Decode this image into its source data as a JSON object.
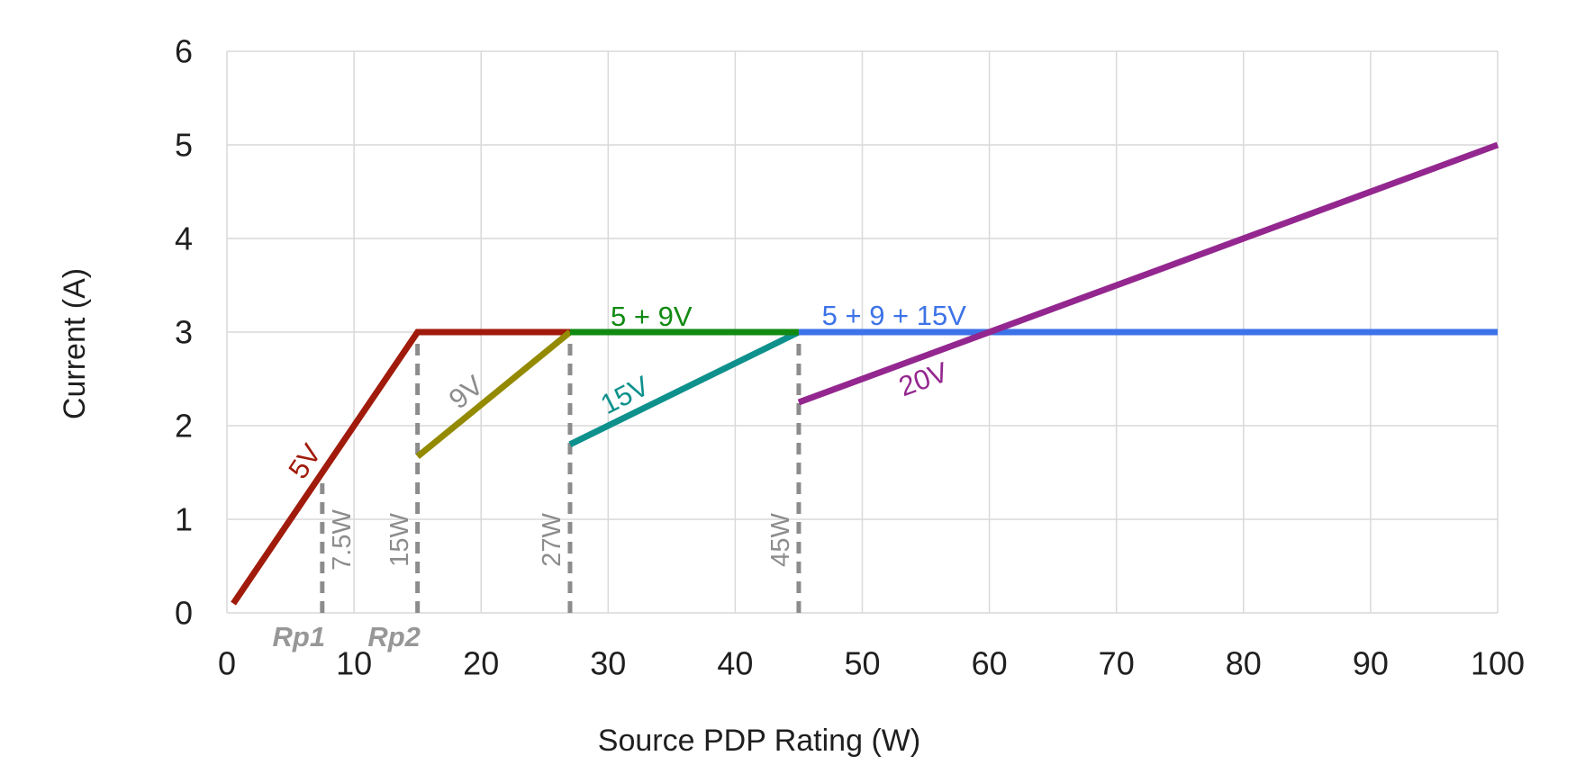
{
  "chart_data": {
    "type": "line",
    "title": "",
    "xlabel": "Source PDP Rating (W)",
    "ylabel": "Current (A)",
    "xlim": [
      0,
      100
    ],
    "ylim": [
      0,
      6
    ],
    "x_ticks": [
      0,
      10,
      20,
      30,
      40,
      50,
      60,
      70,
      80,
      90,
      100
    ],
    "y_ticks": [
      0,
      1,
      2,
      3,
      4,
      5,
      6
    ],
    "grid": true,
    "legend_position": "none",
    "series": [
      {
        "name": "5V",
        "color": "#a01b0c",
        "points": [
          [
            0.5,
            0.1
          ],
          [
            15,
            3
          ],
          [
            27,
            3
          ]
        ]
      },
      {
        "name": "9V",
        "color": "#938a00",
        "points": [
          [
            15,
            1.67
          ],
          [
            27,
            3
          ]
        ]
      },
      {
        "name": "15V",
        "color": "#0e918c",
        "points": [
          [
            27,
            1.8
          ],
          [
            45,
            3
          ]
        ]
      },
      {
        "name": "5 + 9V",
        "color": "#118a11",
        "points": [
          [
            27,
            3
          ],
          [
            45,
            3
          ]
        ]
      },
      {
        "name": "5 + 9 + 15V",
        "color": "#3d73e8",
        "points": [
          [
            45,
            3
          ],
          [
            100,
            3
          ]
        ]
      },
      {
        "name": "20V",
        "color": "#93278f",
        "points": [
          [
            45,
            2.25
          ],
          [
            100,
            5
          ]
        ]
      }
    ],
    "reference_lines": [
      {
        "label": "7.5W",
        "x": 7.5,
        "y_top": 1.5,
        "label_side": "right"
      },
      {
        "label": "15W",
        "x": 15,
        "y_top": 3,
        "label_side": "left"
      },
      {
        "label": "27W",
        "x": 27,
        "y_top": 3,
        "label_side": "left"
      },
      {
        "label": "45W",
        "x": 45,
        "y_top": 3,
        "label_side": "left"
      }
    ],
    "axis_markers": [
      {
        "label": "Rp1",
        "x": 7.5
      },
      {
        "label": "Rp2",
        "x": 15
      }
    ],
    "annotations": [
      {
        "text": "5V",
        "x": 6.1,
        "y": 1.62,
        "rotate": -56,
        "color": "#a01b0c"
      },
      {
        "text": "9V",
        "x": 18.8,
        "y": 2.36,
        "rotate": -39,
        "color": "#8c8c8c"
      },
      {
        "text": "15V",
        "x": 31.3,
        "y": 2.33,
        "rotate": -27,
        "color": "#0e918c"
      },
      {
        "text": "20V",
        "x": 54.8,
        "y": 2.5,
        "rotate": -20,
        "color": "#93278f"
      },
      {
        "text": "5 + 9V",
        "x": 33.4,
        "y": 3.17,
        "rotate": 0,
        "color": "#118a11"
      },
      {
        "text": "5 + 9 + 15V",
        "x": 52.5,
        "y": 3.18,
        "rotate": 0,
        "color": "#3d73e8"
      }
    ],
    "colors": {
      "grid": "#d9d9d9",
      "reference": "#8c8c8c",
      "tick_text": "#1f1f1f",
      "rp_text": "#979797",
      "background": "#ffffff"
    }
  }
}
